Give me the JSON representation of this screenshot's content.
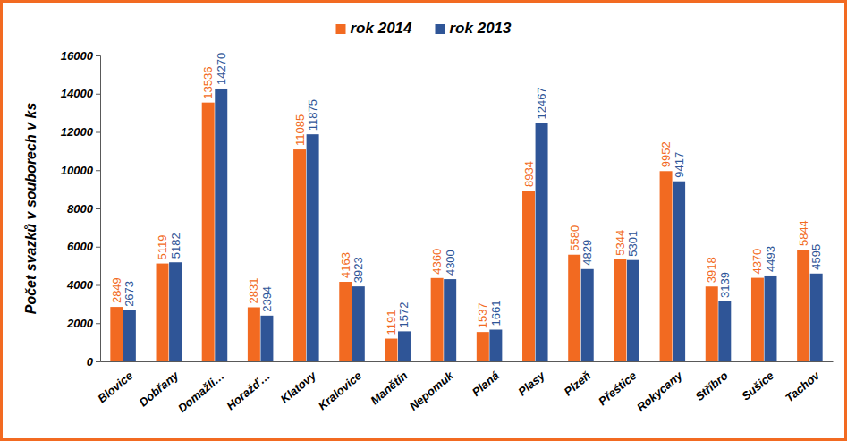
{
  "chart_data": {
    "type": "bar",
    "y_label": "Počet svazků v souborech v ks",
    "categories": [
      "Blovice",
      "Dobřany",
      "Domažli…",
      "Horažď…",
      "Klatovy",
      "Kralovice",
      "Manětín",
      "Nepomuk",
      "Planá",
      "Plasy",
      "Plzeň",
      "Přeštice",
      "Rokycany",
      "Stříbro",
      "Sušice",
      "Tachov"
    ],
    "series": [
      {
        "name": "rok 2014",
        "color": "#f26a21",
        "values": [
          2849,
          5119,
          13536,
          2831,
          11085,
          4163,
          1191,
          4360,
          1537,
          8934,
          5580,
          5344,
          9952,
          3918,
          4370,
          5844
        ]
      },
      {
        "name": "rok 2013",
        "color": "#2f5597",
        "values": [
          2673,
          5182,
          14270,
          2394,
          11875,
          3923,
          1572,
          4300,
          1661,
          12467,
          4829,
          5301,
          9417,
          3139,
          4493,
          4595
        ]
      }
    ],
    "ylim": [
      0,
      16000
    ],
    "yticks": [
      0,
      2000,
      4000,
      6000,
      8000,
      10000,
      12000,
      14000,
      16000
    ],
    "grid": false,
    "legend": "top",
    "data_labels": true
  }
}
